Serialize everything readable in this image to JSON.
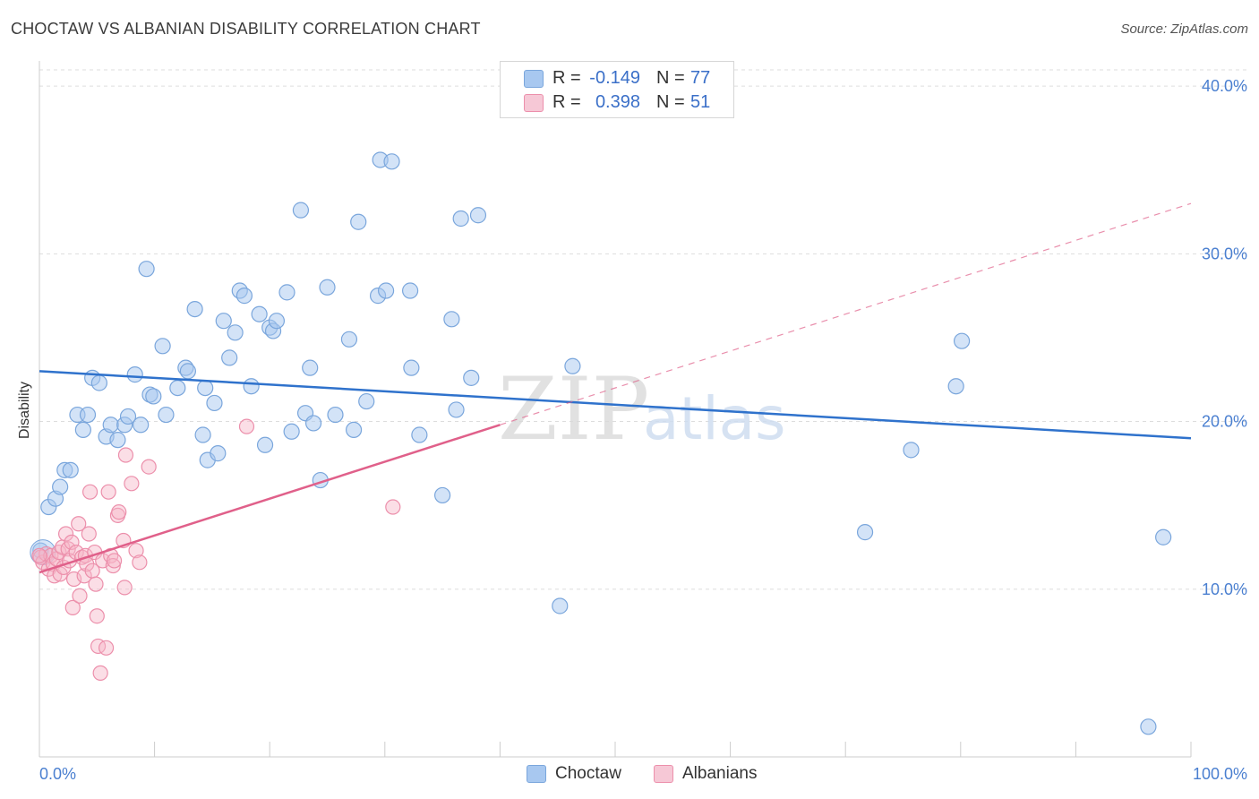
{
  "header": {
    "title": "CHOCTAW VS ALBANIAN DISABILITY CORRELATION CHART",
    "source": "Source: ZipAtlas.com"
  },
  "watermark": {
    "zip": "ZIP",
    "atlas": "atlas"
  },
  "legend": {
    "rows": [
      {
        "r_label": "R =",
        "r_value": "-0.149",
        "n_label": "N =",
        "n_value": "77",
        "color": "#a8c8f0"
      },
      {
        "r_label": "R =",
        "r_value": "0.398",
        "n_label": "N =",
        "n_value": "51",
        "color": "#f6b6c8"
      }
    ]
  },
  "bottom_legend": {
    "choctaw": "Choctaw",
    "albanians": "Albanians"
  },
  "colors": {
    "choctaw_fill": "#a8c8f0",
    "choctaw_stroke": "#7aa6dc",
    "choctaw_line": "#2f72cc",
    "albanian_fill": "#f6b6c8",
    "albanian_stroke": "#ec8fab",
    "albanian_line": "#e0608a",
    "tick": "#4a7fd0",
    "grid": "#dddddd"
  },
  "chart_data": {
    "type": "scatter",
    "title": "CHOCTAW VS ALBANIAN DISABILITY CORRELATION CHART",
    "xlabel": "",
    "ylabel": "Disability",
    "xlim": [
      0,
      100
    ],
    "ylim": [
      0,
      41.5
    ],
    "x_tick_labels": [
      "0.0%",
      "100.0%"
    ],
    "y_ticks": [
      10,
      20,
      30,
      40
    ],
    "y_tick_labels": [
      "10.0%",
      "20.0%",
      "30.0%",
      "40.0%"
    ],
    "grid": true,
    "series": [
      {
        "name": "Choctaw",
        "trend": {
          "x": [
            0,
            100
          ],
          "y": [
            23.0,
            19.0
          ],
          "dashed_extension": false
        },
        "points": [
          [
            0.1,
            12.3
          ],
          [
            0.8,
            14.9
          ],
          [
            1.4,
            15.4
          ],
          [
            1.8,
            16.1
          ],
          [
            2.2,
            17.1
          ],
          [
            2.7,
            17.1
          ],
          [
            3.3,
            20.4
          ],
          [
            3.8,
            19.5
          ],
          [
            4.2,
            20.4
          ],
          [
            4.6,
            22.6
          ],
          [
            5.2,
            22.3
          ],
          [
            5.8,
            19.1
          ],
          [
            6.2,
            19.8
          ],
          [
            6.8,
            18.9
          ],
          [
            7.4,
            19.8
          ],
          [
            7.7,
            20.3
          ],
          [
            8.3,
            22.8
          ],
          [
            8.8,
            19.8
          ],
          [
            9.3,
            29.1
          ],
          [
            9.6,
            21.6
          ],
          [
            9.9,
            21.5
          ],
          [
            10.7,
            24.5
          ],
          [
            11.0,
            20.4
          ],
          [
            12.0,
            22.0
          ],
          [
            12.7,
            23.2
          ],
          [
            12.9,
            23.0
          ],
          [
            13.5,
            26.7
          ],
          [
            14.2,
            19.2
          ],
          [
            14.4,
            22.0
          ],
          [
            14.6,
            17.7
          ],
          [
            15.2,
            21.1
          ],
          [
            15.5,
            18.1
          ],
          [
            16.0,
            26.0
          ],
          [
            16.5,
            23.8
          ],
          [
            17.0,
            25.3
          ],
          [
            17.4,
            27.8
          ],
          [
            17.8,
            27.5
          ],
          [
            18.4,
            22.1
          ],
          [
            19.1,
            26.4
          ],
          [
            19.6,
            18.6
          ],
          [
            20.0,
            25.6
          ],
          [
            20.3,
            25.4
          ],
          [
            20.6,
            26.0
          ],
          [
            21.5,
            27.7
          ],
          [
            21.9,
            19.4
          ],
          [
            22.7,
            32.6
          ],
          [
            23.1,
            20.5
          ],
          [
            23.5,
            23.2
          ],
          [
            23.8,
            19.9
          ],
          [
            24.4,
            16.5
          ],
          [
            25.0,
            28.0
          ],
          [
            25.7,
            20.4
          ],
          [
            26.9,
            24.9
          ],
          [
            27.3,
            19.5
          ],
          [
            27.7,
            31.9
          ],
          [
            28.4,
            21.2
          ],
          [
            29.4,
            27.5
          ],
          [
            29.6,
            35.6
          ],
          [
            30.1,
            27.8
          ],
          [
            30.6,
            35.5
          ],
          [
            32.2,
            27.8
          ],
          [
            32.3,
            23.2
          ],
          [
            33.0,
            19.2
          ],
          [
            35.0,
            15.6
          ],
          [
            35.8,
            26.1
          ],
          [
            36.2,
            20.7
          ],
          [
            36.6,
            32.1
          ],
          [
            37.5,
            22.6
          ],
          [
            38.1,
            32.3
          ],
          [
            45.2,
            9.0
          ],
          [
            46.3,
            23.3
          ],
          [
            71.7,
            13.4
          ],
          [
            75.7,
            18.3
          ],
          [
            79.6,
            22.1
          ],
          [
            80.1,
            24.8
          ],
          [
            97.6,
            13.1
          ],
          [
            96.3,
            1.8
          ]
        ]
      },
      {
        "name": "Albanians",
        "trend": {
          "x": [
            0,
            40
          ],
          "y": [
            11.0,
            19.8
          ],
          "dashed_extension": true,
          "dashed_to": {
            "x": 100,
            "y": 33.0
          }
        },
        "points": [
          [
            0.1,
            11.9
          ],
          [
            0.3,
            11.6
          ],
          [
            0.6,
            12.1
          ],
          [
            0.8,
            11.2
          ],
          [
            1.0,
            12.0
          ],
          [
            1.2,
            11.5
          ],
          [
            1.3,
            10.8
          ],
          [
            1.5,
            11.8
          ],
          [
            1.7,
            12.2
          ],
          [
            1.8,
            10.9
          ],
          [
            2.0,
            12.5
          ],
          [
            2.1,
            11.3
          ],
          [
            2.3,
            13.3
          ],
          [
            2.5,
            12.4
          ],
          [
            2.6,
            11.7
          ],
          [
            2.8,
            12.8
          ],
          [
            2.9,
            8.9
          ],
          [
            3.0,
            10.6
          ],
          [
            3.2,
            12.2
          ],
          [
            3.4,
            13.9
          ],
          [
            3.5,
            9.6
          ],
          [
            3.7,
            11.9
          ],
          [
            3.9,
            10.8
          ],
          [
            4.0,
            12.0
          ],
          [
            4.1,
            11.5
          ],
          [
            4.3,
            13.3
          ],
          [
            4.4,
            15.8
          ],
          [
            4.6,
            11.1
          ],
          [
            4.8,
            12.2
          ],
          [
            4.9,
            10.3
          ],
          [
            5.0,
            8.4
          ],
          [
            5.1,
            6.6
          ],
          [
            5.3,
            5.0
          ],
          [
            5.5,
            11.7
          ],
          [
            5.8,
            6.5
          ],
          [
            6.0,
            15.8
          ],
          [
            6.2,
            12.0
          ],
          [
            6.4,
            11.4
          ],
          [
            6.5,
            11.7
          ],
          [
            6.8,
            14.4
          ],
          [
            6.9,
            14.6
          ],
          [
            7.3,
            12.9
          ],
          [
            7.4,
            10.1
          ],
          [
            7.5,
            18.0
          ],
          [
            8.0,
            16.3
          ],
          [
            8.4,
            12.3
          ],
          [
            8.7,
            11.6
          ],
          [
            9.5,
            17.3
          ],
          [
            18.0,
            19.7
          ],
          [
            30.7,
            14.9
          ],
          [
            0.0,
            12.0
          ]
        ]
      }
    ]
  }
}
